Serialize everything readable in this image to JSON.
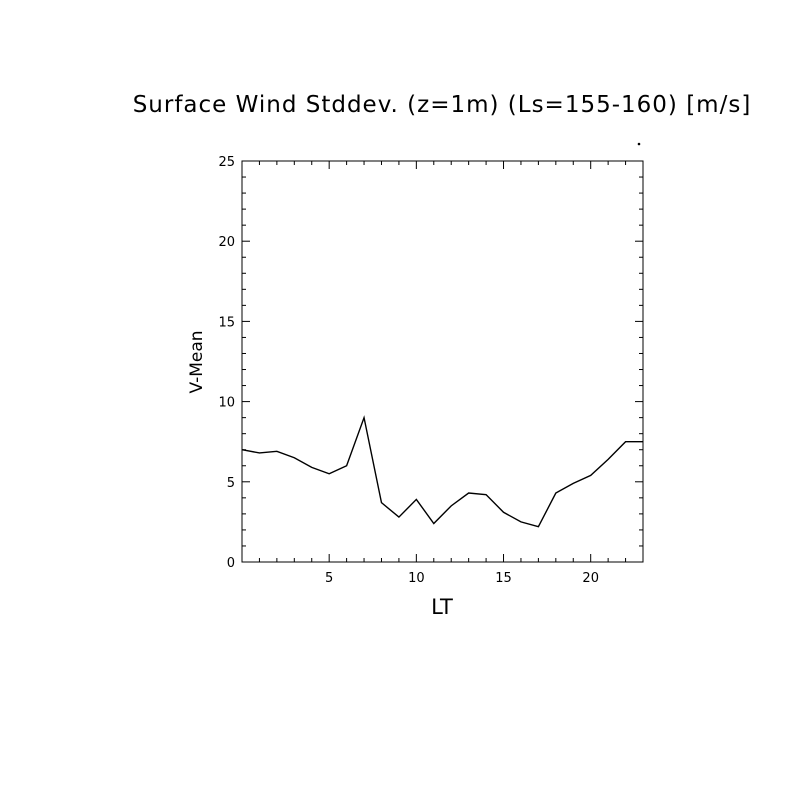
{
  "chart_data": {
    "type": "line",
    "title": "Surface Wind Stddev. (z=1m) (Ls=155-160) [m/s]",
    "xlabel": "LT",
    "ylabel": "V-Mean",
    "xlim": [
      0,
      23
    ],
    "ylim": [
      0,
      25
    ],
    "xticks": [
      5,
      10,
      15,
      20
    ],
    "yticks": [
      0,
      5,
      10,
      15,
      20,
      25
    ],
    "grid": false,
    "series": [
      {
        "x": [
          0,
          1,
          2,
          3,
          4,
          5,
          6,
          7,
          8,
          9,
          10,
          11,
          12,
          13,
          14,
          15,
          16,
          17,
          18,
          19,
          20,
          21,
          22,
          23
        ],
        "values": [
          7.0,
          6.8,
          6.9,
          6.5,
          5.9,
          5.5,
          6.0,
          9.0,
          3.7,
          2.8,
          3.9,
          2.4,
          3.5,
          4.3,
          4.2,
          3.1,
          2.5,
          2.2,
          4.3,
          4.9,
          5.4,
          6.4,
          7.5,
          7.5
        ]
      }
    ]
  }
}
